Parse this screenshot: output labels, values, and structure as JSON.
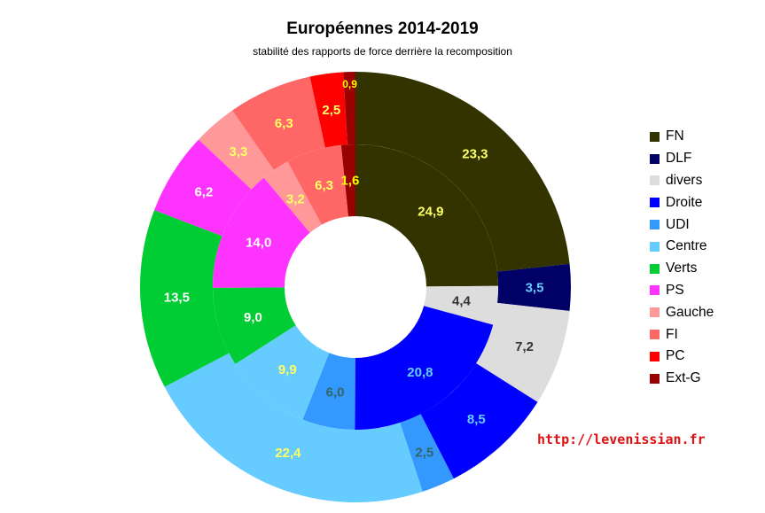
{
  "chart_data": {
    "type": "pie",
    "variant": "double-ring donut",
    "title": "Européennes 2014-2019",
    "subtitle": "stabilité des rapports de force derrière la recomposition",
    "source_url": "http://levenissian.fr",
    "series": [
      {
        "name": "outer ring",
        "slices": [
          {
            "category": "FN",
            "value": 23.3,
            "label": "23,3"
          },
          {
            "category": "DLF",
            "value": 3.5,
            "label": "3,5"
          },
          {
            "category": "divers",
            "value": 7.2,
            "label": "7,2"
          },
          {
            "category": "Droite",
            "value": 8.5,
            "label": "8,5"
          },
          {
            "category": "UDI",
            "value": 2.5,
            "label": "2,5"
          },
          {
            "category": "Centre",
            "value": 22.4,
            "label": "22,4"
          },
          {
            "category": "Verts",
            "value": 13.5,
            "label": "13,5"
          },
          {
            "category": "PS",
            "value": 6.2,
            "label": "6,2"
          },
          {
            "category": "Gauche",
            "value": 3.3,
            "label": "3,3"
          },
          {
            "category": "FI",
            "value": 6.3,
            "label": "6,3"
          },
          {
            "category": "PC",
            "value": 2.5,
            "label": "2,5"
          },
          {
            "category": "Ext-G",
            "value": 0.9,
            "label": "0,9"
          }
        ]
      },
      {
        "name": "inner ring",
        "slices": [
          {
            "category": "FN",
            "value": 24.9,
            "label": "24,9"
          },
          {
            "category": "divers",
            "value": 4.4,
            "label": "4,4"
          },
          {
            "category": "Droite",
            "value": 20.8,
            "label": "20,8"
          },
          {
            "category": "UDI",
            "value": 6.0,
            "label": "6,0"
          },
          {
            "category": "Centre",
            "value": 9.9,
            "label": "9,9"
          },
          {
            "category": "Verts",
            "value": 9.0,
            "label": "9,0"
          },
          {
            "category": "PS",
            "value": 14.0,
            "label": "14,0"
          },
          {
            "category": "Gauche",
            "value": 3.2,
            "label": "3,2"
          },
          {
            "category": "FI",
            "value": 6.3,
            "label": "6,3"
          },
          {
            "category": "Ext-G",
            "value": 1.6,
            "label": "1,6"
          }
        ]
      }
    ],
    "legend": {
      "position": "right",
      "entries": [
        {
          "label": "FN",
          "color": "#333300"
        },
        {
          "label": "DLF",
          "color": "#000066"
        },
        {
          "label": "divers",
          "color": "#dddddd"
        },
        {
          "label": "Droite",
          "color": "#0000ff"
        },
        {
          "label": "UDI",
          "color": "#3399ff"
        },
        {
          "label": "Centre",
          "color": "#66ccff"
        },
        {
          "label": "Verts",
          "color": "#00cc33"
        },
        {
          "label": "PS",
          "color": "#ff33ff"
        },
        {
          "label": "Gauche",
          "color": "#ff9999"
        },
        {
          "label": "FI",
          "color": "#ff6666"
        },
        {
          "label": "PC",
          "color": "#ff0000"
        },
        {
          "label": "Ext-G",
          "color": "#990000"
        }
      ]
    },
    "label_colors": {
      "FN": "#ffff66",
      "DLF": "#66ccff",
      "divers": "#333333",
      "Droite": "#66ccff",
      "UDI": "#336666",
      "Centre": "#ffff66",
      "Verts": "#ffffff",
      "PS": "#ffffff",
      "Gauche": "#ffff66",
      "FI": "#ffff66",
      "PC": "#ffff66",
      "Ext-G": "#ffff00"
    }
  }
}
